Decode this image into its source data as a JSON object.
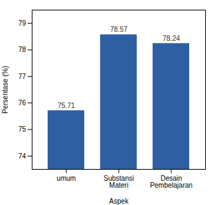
{
  "chart_data": {
    "type": "bar",
    "categories": [
      "umum",
      "Substansi\nMateri",
      "Desain\nPembelajaran"
    ],
    "values": [
      75.71,
      78.57,
      78.24
    ],
    "color": "#2E5FA3",
    "xlabel": "Aspek",
    "ylabel": "Persentase (%)",
    "ylim": [
      73.5,
      79.5
    ],
    "yticks": [
      74,
      75,
      76,
      77,
      78,
      79
    ],
    "grid": false,
    "data_labels": true
  }
}
